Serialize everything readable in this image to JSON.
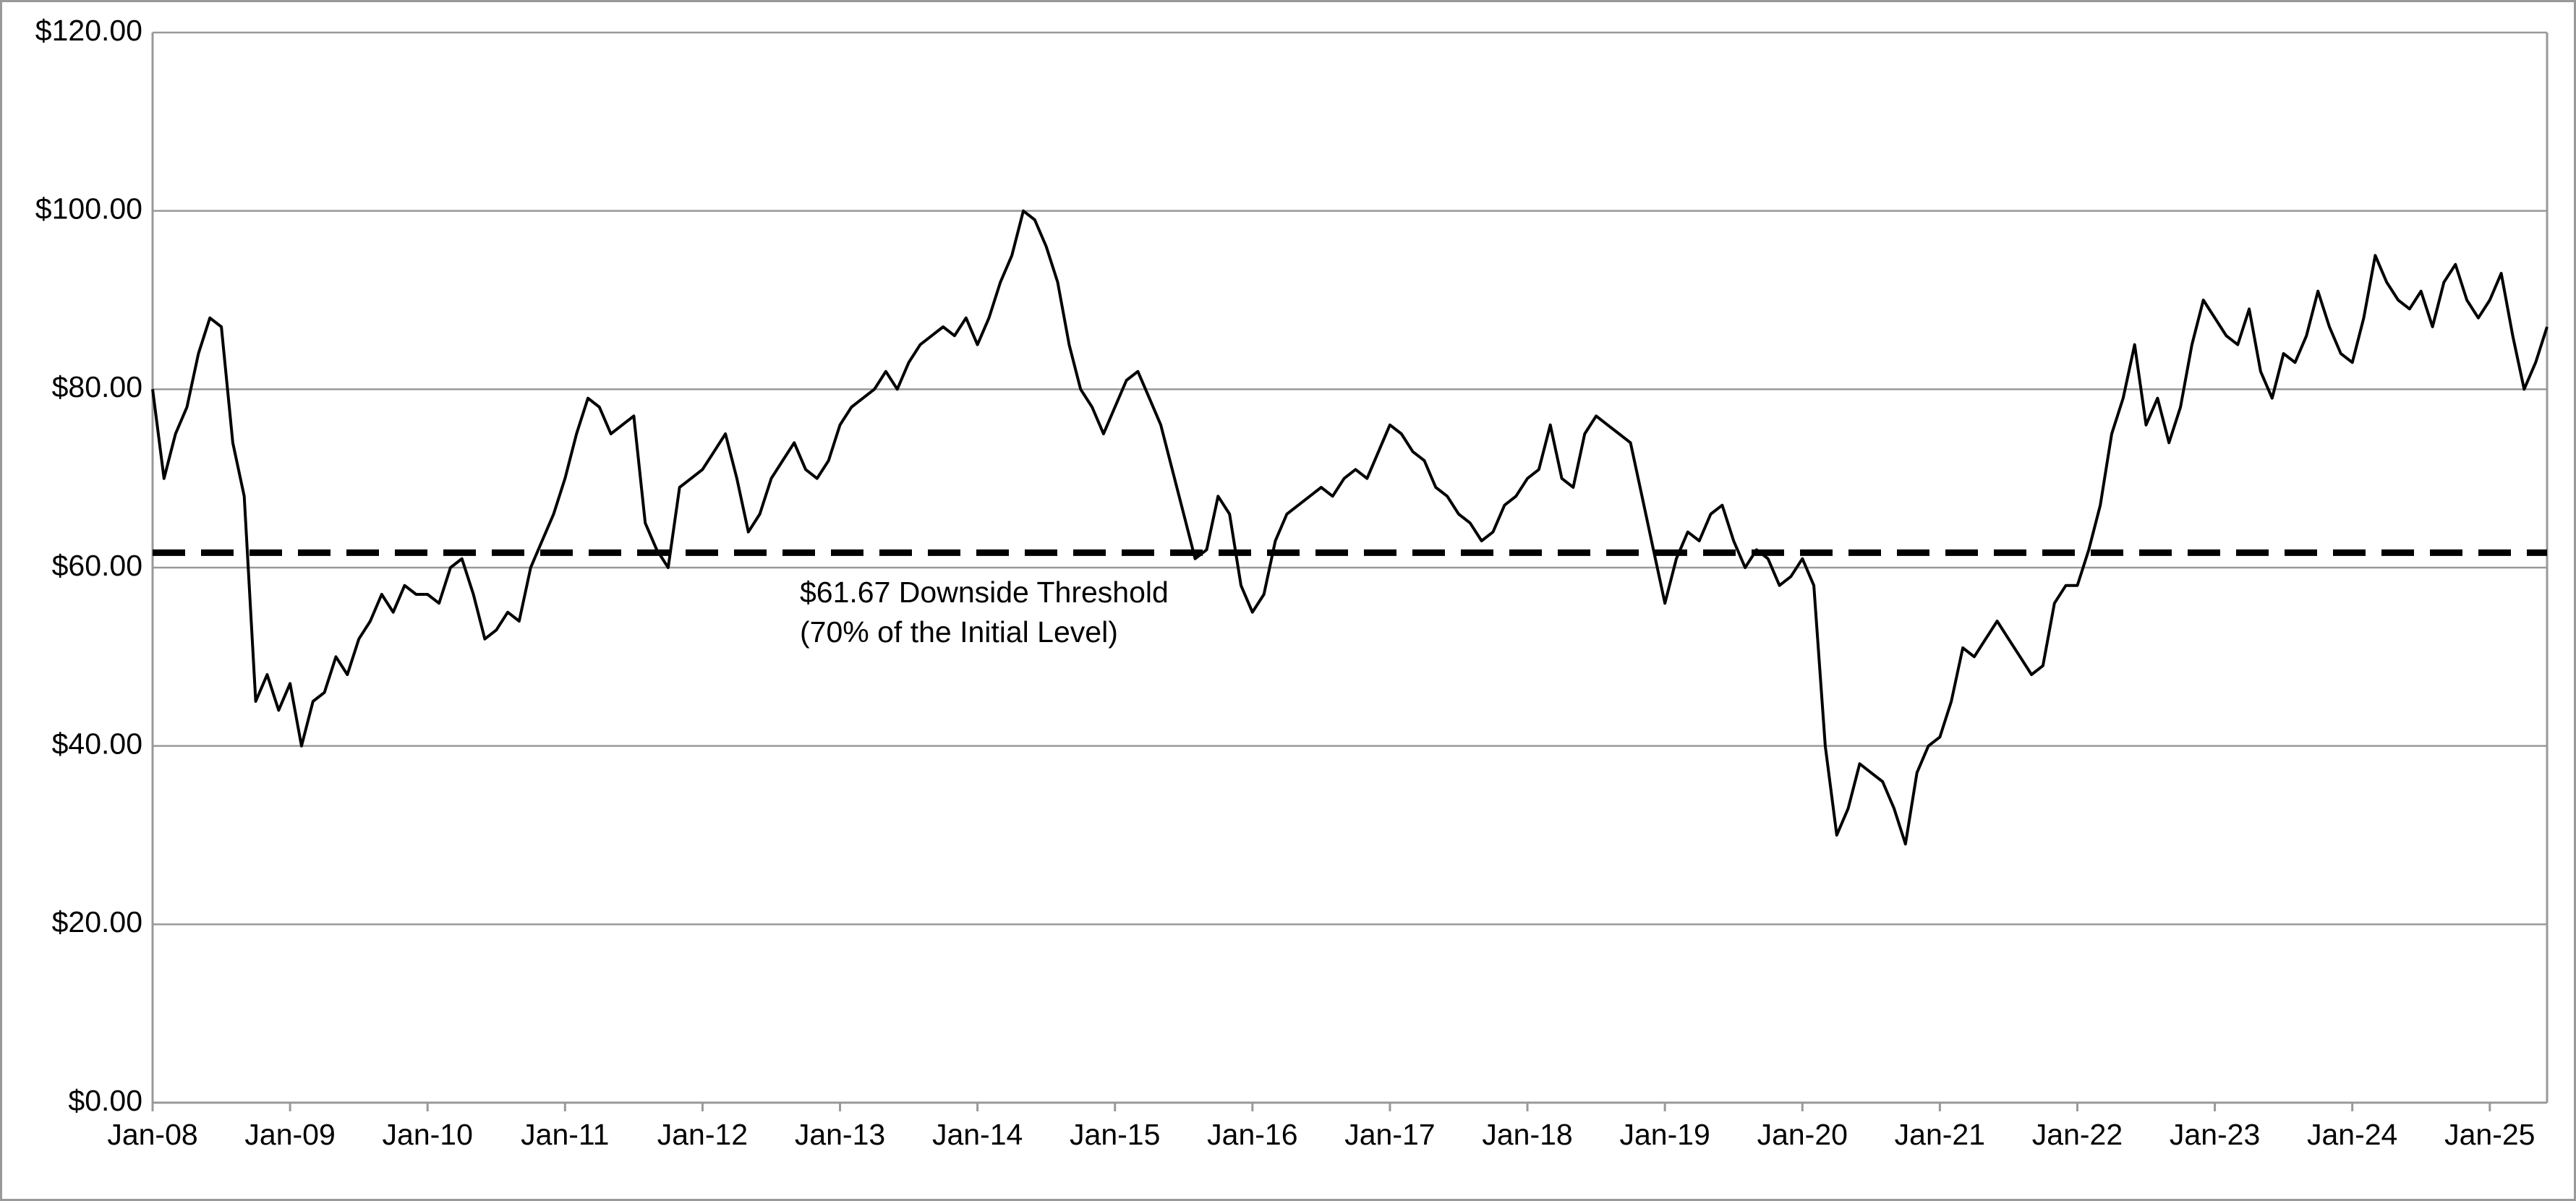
{
  "chart_data": {
    "type": "line",
    "categories": [
      "Jan-08",
      null,
      null,
      null,
      null,
      null,
      null,
      null,
      null,
      null,
      null,
      null,
      "Jan-09",
      null,
      null,
      null,
      null,
      null,
      null,
      null,
      null,
      null,
      null,
      null,
      "Jan-10",
      null,
      null,
      null,
      null,
      null,
      null,
      null,
      null,
      null,
      null,
      null,
      "Jan-11",
      null,
      null,
      null,
      null,
      null,
      null,
      null,
      null,
      null,
      null,
      null,
      "Jan-12",
      null,
      null,
      null,
      null,
      null,
      null,
      null,
      null,
      null,
      null,
      null,
      "Jan-13",
      null,
      null,
      null,
      null,
      null,
      null,
      null,
      null,
      null,
      null,
      null,
      "Jan-14",
      null,
      null,
      null,
      null,
      null,
      null,
      null,
      null,
      null,
      null,
      null,
      "Jan-15",
      null,
      null,
      null,
      null,
      null,
      null,
      null,
      null,
      null,
      null,
      null,
      "Jan-16",
      null,
      null,
      null,
      null,
      null,
      null,
      null,
      null,
      null,
      null,
      null,
      "Jan-17",
      null,
      null,
      null,
      null,
      null,
      null,
      null,
      null,
      null,
      null,
      null,
      "Jan-18",
      null,
      null,
      null,
      null,
      null,
      null,
      null,
      null,
      null,
      null,
      null,
      "Jan-19",
      null,
      null,
      null,
      null,
      null,
      null,
      null,
      null,
      null,
      null,
      null,
      "Jan-20",
      null,
      null,
      null,
      null,
      null,
      null,
      null,
      null,
      null,
      null,
      null,
      "Jan-21",
      null,
      null,
      null,
      null,
      null,
      null,
      null,
      null,
      null,
      null,
      null,
      "Jan-22",
      null,
      null,
      null,
      null,
      null,
      null,
      null,
      null,
      null,
      null,
      null,
      "Jan-23",
      null,
      null,
      null,
      null,
      null,
      null,
      null,
      null,
      null,
      null,
      null,
      "Jan-24",
      null,
      null,
      null,
      null,
      null,
      null,
      null,
      null,
      null,
      null,
      null,
      "Jan-25",
      null,
      null,
      null,
      null,
      null
    ],
    "values": [
      80,
      70,
      75,
      78,
      84,
      88,
      87,
      74,
      68,
      45,
      48,
      44,
      47,
      40,
      45,
      46,
      50,
      48,
      52,
      54,
      57,
      55,
      58,
      57,
      57,
      56,
      60,
      61,
      57,
      52,
      53,
      55,
      54,
      60,
      63,
      66,
      70,
      75,
      79,
      78,
      75,
      76,
      77,
      65,
      62,
      60,
      69,
      70,
      71,
      73,
      75,
      70,
      64,
      66,
      70,
      72,
      74,
      71,
      70,
      72,
      76,
      78,
      79,
      80,
      82,
      80,
      83,
      85,
      86,
      87,
      86,
      88,
      85,
      88,
      92,
      95,
      100,
      99,
      96,
      92,
      85,
      80,
      78,
      75,
      78,
      81,
      82,
      79,
      76,
      71,
      66,
      61,
      62,
      68,
      66,
      58,
      55,
      57,
      63,
      66,
      67,
      68,
      69,
      68,
      70,
      71,
      70,
      73,
      76,
      75,
      73,
      72,
      69,
      68,
      66,
      65,
      63,
      64,
      67,
      68,
      70,
      71,
      76,
      70,
      69,
      75,
      77,
      76,
      75,
      74,
      68,
      62,
      56,
      61,
      64,
      63,
      66,
      67,
      63,
      60,
      62,
      61,
      58,
      59,
      61,
      58,
      40,
      30,
      33,
      38,
      37,
      36,
      33,
      29,
      37,
      40,
      41,
      45,
      51,
      50,
      52,
      54,
      52,
      50,
      48,
      49,
      56,
      58,
      58,
      62,
      67,
      75,
      79,
      85,
      76,
      79,
      74,
      78,
      85,
      90,
      88,
      86,
      85,
      89,
      82,
      79,
      84,
      83,
      86,
      91,
      87,
      84,
      83,
      88,
      95,
      92,
      90,
      89,
      91,
      87,
      92,
      94,
      90,
      88,
      90,
      93,
      86,
      80,
      83,
      87
    ],
    "color": "#000000",
    "ylim": [
      0,
      120
    ],
    "yticks": [
      {
        "value": 0,
        "label": "$0.00"
      },
      {
        "value": 20,
        "label": "$20.00"
      },
      {
        "value": 40,
        "label": "$40.00"
      },
      {
        "value": 60,
        "label": "$60.00"
      },
      {
        "value": 80,
        "label": "$80.00"
      },
      {
        "value": 100,
        "label": "$100.00"
      },
      {
        "value": 120,
        "label": "$120.00"
      }
    ],
    "grid": true,
    "threshold": 61.67,
    "annotations": [
      "$61.67 Downside Threshold",
      "(70% of the Initial Level)"
    ]
  }
}
